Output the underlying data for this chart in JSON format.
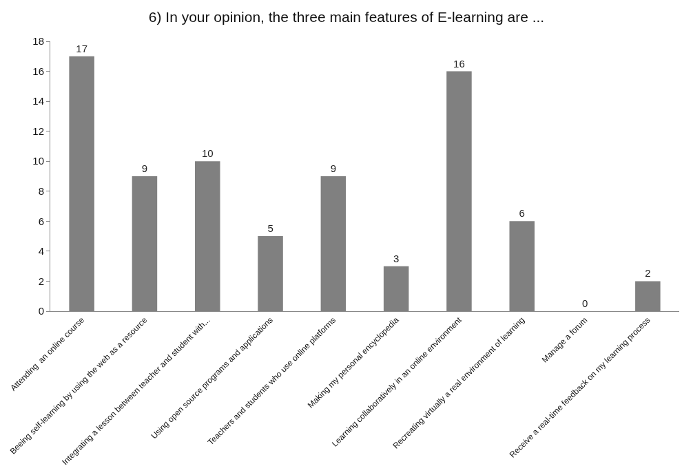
{
  "chart_data": {
    "type": "bar",
    "title": "6) In your opinion, the three main features of E-learning are ...",
    "categories": [
      "Attending  an online course",
      "Beeing self-learning by using the web as a resource",
      "Integrating a lesson between teacher and student with...",
      "Using open source programs and applications",
      "Teachers and students who use online platforms",
      "Making my personal encyclopedia",
      "Learning collaboratively in an online environment",
      "Recreating virtually a real environment of learning",
      "Manage a forum",
      "Receive a real-time feedback on my learning process"
    ],
    "values": [
      17,
      9,
      10,
      5,
      9,
      3,
      16,
      6,
      0,
      2
    ],
    "color": "#808080",
    "ylim": [
      0,
      18
    ],
    "yticks": [
      0,
      2,
      4,
      6,
      8,
      10,
      12,
      14,
      16,
      18
    ],
    "data_labels": true,
    "grid": false,
    "legend": false
  }
}
